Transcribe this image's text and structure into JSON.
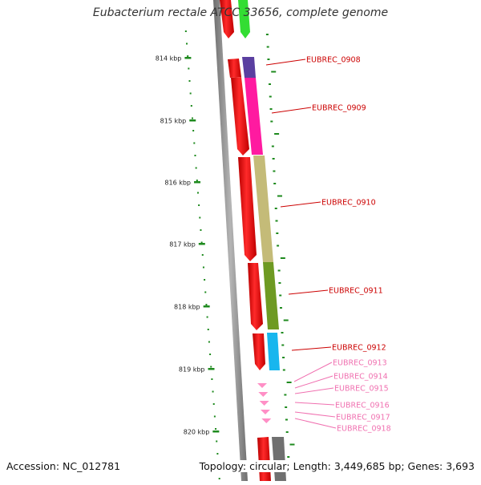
{
  "title": "Eubacterium rectale ATCC 33656, complete genome",
  "footer": {
    "accession": "Accession: NC_012781",
    "topology": "Topology: circular; Length: 3,449,685 bp; Genes: 3,693"
  },
  "colors": {
    "cds_forward": "#ff0000",
    "strand_line": "#8c8c8c",
    "ticks": "#1e8a1e",
    "label_primary": "#cc0000",
    "label_secondary": "#f070b0"
  },
  "scale_labels": [
    "814 kbp",
    "815 kbp",
    "816 kbp",
    "817 kbp",
    "818 kbp",
    "819 kbp",
    "820 kbp"
  ],
  "gene_labels": [
    {
      "text": "EUBREC_0908",
      "color": "#cc0000"
    },
    {
      "text": "EUBREC_0909",
      "color": "#cc0000"
    },
    {
      "text": "EUBREC_0910",
      "color": "#cc0000"
    },
    {
      "text": "EUBREC_0911",
      "color": "#cc0000"
    },
    {
      "text": "EUBREC_0912",
      "color": "#cc0000"
    },
    {
      "text": "EUBREC_0913",
      "color": "#f070b0"
    },
    {
      "text": "EUBREC_0914",
      "color": "#f070b0"
    },
    {
      "text": "EUBREC_0915",
      "color": "#f070b0"
    },
    {
      "text": "EUBREC_0916",
      "color": "#f070b0"
    },
    {
      "text": "EUBREC_0917",
      "color": "#f070b0"
    },
    {
      "text": "EUBREC_0918",
      "color": "#f070b0"
    }
  ],
  "feature_colors": {
    "EUBREC_0908": "#5a3fa0",
    "EUBREC_0909": "#ff1aa0",
    "EUBREC_0910": "#c4bb78",
    "EUBREC_0911": "#6e9a22",
    "EUBREC_0912": "#18b6ee",
    "small_rna": "#ff8fc6",
    "top_partial": "#33dd33",
    "bottom_partial": "#707070"
  }
}
